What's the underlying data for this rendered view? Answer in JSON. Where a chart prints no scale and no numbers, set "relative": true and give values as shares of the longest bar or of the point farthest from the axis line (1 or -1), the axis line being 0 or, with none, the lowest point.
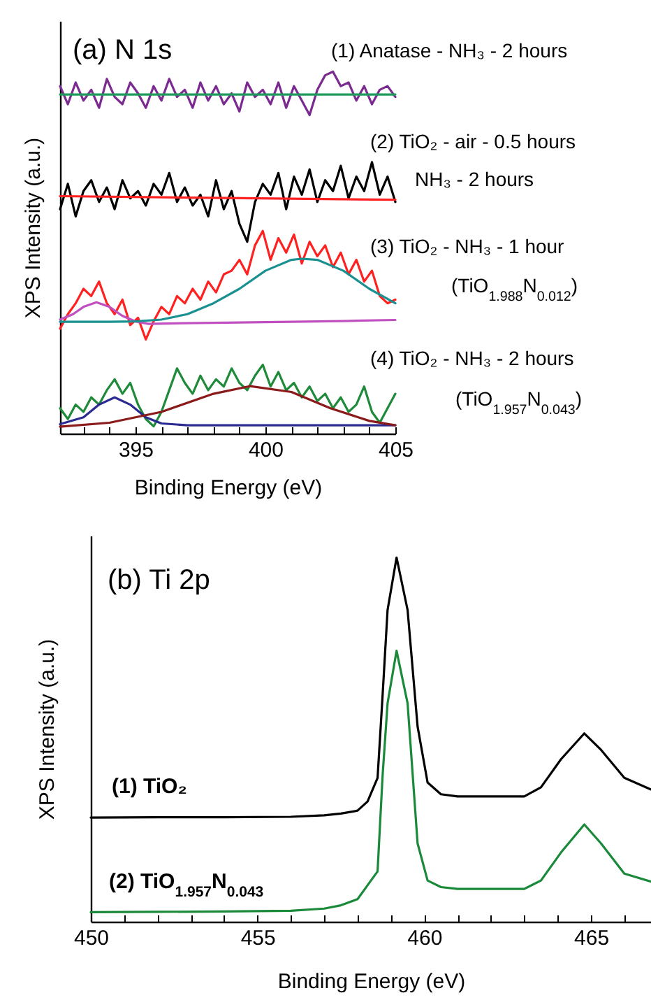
{
  "chart_data": [
    {
      "type": "line",
      "title": "(a) N 1s",
      "xlabel": "Binding Energy (eV)",
      "ylabel": "XPS Intensity (a.u.)",
      "relative": true,
      "grid": false,
      "xlim": [
        392.1,
        405
      ],
      "xticks": [
        {
          "value": 393,
          "label": null
        },
        {
          "value": 394,
          "label": null
        },
        395,
        {
          "value": 396,
          "label": null
        },
        {
          "value": 397,
          "label": null
        },
        {
          "value": 398,
          "label": null
        },
        {
          "value": 399,
          "label": null
        },
        400,
        {
          "value": 401,
          "label": null
        },
        {
          "value": 402,
          "label": null
        },
        {
          "value": 403,
          "label": null
        },
        {
          "value": 404,
          "label": null
        },
        405
      ],
      "annotations": [
        "(1) Anatase - NH₃ - 2 hours",
        "(2) TiO₂ - air - 0.5 hours",
        "NH₃ - 2 hours",
        "(3) TiO₂ - NH₃ - 1 hour",
        "(TiO$_{1.988}$N$_{0.012}$)",
        "(4) TiO₂ - NH₃ - 2 hours",
        "(TiO$_{1.957}$N$_{0.043}$)"
      ],
      "x": [
        392.1,
        392.4,
        392.7,
        393.0,
        393.3,
        393.6,
        393.9,
        394.2,
        394.5,
        394.8,
        395.1,
        395.4,
        395.7,
        396.0,
        396.3,
        396.6,
        396.9,
        397.2,
        397.5,
        397.8,
        398.1,
        398.4,
        398.7,
        399.0,
        399.3,
        399.6,
        399.9,
        400.2,
        400.5,
        400.8,
        401.1,
        401.4,
        401.7,
        402.0,
        402.3,
        402.6,
        402.9,
        403.2,
        403.5,
        403.8,
        404.1,
        404.4,
        404.7,
        405.0
      ],
      "series": [
        {
          "color": "#7b2a8f",
          "values": [
            0.96,
            0.91,
            0.97,
            0.92,
            0.95,
            0.9,
            0.98,
            0.93,
            0.91,
            0.97,
            0.94,
            0.9,
            0.96,
            0.92,
            0.98,
            0.93,
            0.95,
            0.9,
            0.97,
            0.92,
            0.96,
            0.91,
            0.94,
            0.89,
            0.97,
            0.93,
            0.95,
            0.91,
            0.97,
            0.9,
            0.96,
            0.92,
            0.88,
            0.95,
            0.99,
            1.0,
            0.96,
            0.97,
            0.92,
            0.96,
            0.91,
            0.95,
            0.96,
            0.93
          ]
        },
        {
          "color": "#1f9a5a",
          "x": [
            392.1,
            405
          ],
          "values": [
            0.937,
            0.937
          ]
        },
        {
          "color": "#000000",
          "values": [
            0.62,
            0.69,
            0.6,
            0.67,
            0.7,
            0.64,
            0.68,
            0.62,
            0.7,
            0.65,
            0.67,
            0.63,
            0.69,
            0.66,
            0.72,
            0.64,
            0.68,
            0.63,
            0.66,
            0.6,
            0.7,
            0.62,
            0.67,
            0.58,
            0.53,
            0.64,
            0.69,
            0.66,
            0.72,
            0.62,
            0.71,
            0.66,
            0.73,
            0.64,
            0.7,
            0.67,
            0.74,
            0.65,
            0.71,
            0.67,
            0.75,
            0.66,
            0.71,
            0.64
          ]
        },
        {
          "color": "#ff2020",
          "x": [
            392.1,
            405
          ],
          "values": [
            0.656,
            0.646
          ]
        },
        {
          "color": "#ff2020",
          "values": [
            0.29,
            0.33,
            0.36,
            0.4,
            0.38,
            0.42,
            0.36,
            0.33,
            0.37,
            0.3,
            0.32,
            0.26,
            0.31,
            0.35,
            0.33,
            0.38,
            0.36,
            0.4,
            0.37,
            0.42,
            0.39,
            0.44,
            0.45,
            0.48,
            0.44,
            0.52,
            0.56,
            0.48,
            0.54,
            0.5,
            0.55,
            0.47,
            0.53,
            0.49,
            0.52,
            0.46,
            0.5,
            0.44,
            0.48,
            0.42,
            0.45,
            0.38,
            0.36,
            0.37
          ]
        },
        {
          "color": "#c050c0",
          "x": [
            392.1,
            392.6,
            393.0,
            393.5,
            394.0,
            394.5,
            395.0,
            395.5,
            397,
            400,
            403,
            405
          ],
          "values": [
            0.315,
            0.33,
            0.35,
            0.363,
            0.35,
            0.325,
            0.31,
            0.303,
            0.305,
            0.308,
            0.311,
            0.314
          ]
        },
        {
          "color": "#1a9090",
          "x": [
            392.1,
            393,
            394,
            395,
            396,
            397,
            398,
            399,
            400,
            401,
            401.4,
            402,
            403,
            404,
            405
          ],
          "values": [
            0.309,
            0.309,
            0.309,
            0.31,
            0.315,
            0.33,
            0.36,
            0.4,
            0.45,
            0.48,
            0.483,
            0.48,
            0.45,
            0.4,
            0.36
          ]
        },
        {
          "color": "#1e8a3a",
          "values": [
            0.07,
            0.04,
            0.08,
            0.06,
            0.1,
            0.08,
            0.12,
            0.15,
            0.11,
            0.14,
            0.08,
            0.04,
            0.02,
            0.06,
            0.12,
            0.18,
            0.14,
            0.11,
            0.16,
            0.12,
            0.15,
            0.13,
            0.18,
            0.14,
            0.12,
            0.16,
            0.19,
            0.13,
            0.17,
            0.12,
            0.14,
            0.1,
            0.13,
            0.09,
            0.11,
            0.07,
            0.1,
            0.06,
            0.08,
            0.13,
            0.06,
            0.03,
            0.07,
            0.11
          ]
        },
        {
          "color": "#2a2a90",
          "x": [
            392.1,
            393.0,
            393.6,
            394.2,
            394.8,
            395.4,
            396.0,
            397,
            400,
            405
          ],
          "values": [
            0.026,
            0.045,
            0.08,
            0.1,
            0.08,
            0.045,
            0.028,
            0.023,
            0.023,
            0.023
          ]
        },
        {
          "color": "#8b1a1a",
          "x": [
            392.1,
            394,
            396,
            398,
            399.4,
            401,
            402.5,
            404,
            405
          ],
          "values": [
            0.019,
            0.03,
            0.06,
            0.11,
            0.131,
            0.115,
            0.07,
            0.035,
            0.023
          ]
        }
      ]
    },
    {
      "type": "line",
      "title": "(b) Ti 2p",
      "xlabel": "Binding Energy (eV)",
      "ylabel": "XPS Intensity (a.u.)",
      "relative": true,
      "grid": false,
      "xlim": [
        450,
        466.8
      ],
      "xticks": [
        450,
        {
          "value": 451,
          "label": null
        },
        {
          "value": 452,
          "label": null
        },
        {
          "value": 453,
          "label": null
        },
        {
          "value": 454,
          "label": null
        },
        455,
        {
          "value": 456,
          "label": null
        },
        {
          "value": 457,
          "label": null
        },
        {
          "value": 458,
          "label": null
        },
        {
          "value": 459,
          "label": null
        },
        460,
        {
          "value": 461,
          "label": null
        },
        {
          "value": 462,
          "label": null
        },
        {
          "value": 463,
          "label": null
        },
        {
          "value": 464,
          "label": null
        },
        465,
        {
          "value": 466,
          "label": null
        }
      ],
      "annotations": [
        "(1) TiO₂",
        "(2) TiO$_{1.957}$N$_{0.043}$"
      ],
      "x": [
        450,
        452,
        454,
        456,
        457,
        457.5,
        458,
        458.3,
        458.6,
        458.75,
        458.9,
        459.17,
        459.5,
        459.8,
        460.1,
        460.5,
        461,
        462,
        463,
        463.5,
        464.1,
        464.8,
        465.3,
        466,
        466.8
      ],
      "series": [
        {
          "color": "#000000",
          "values": [
            0.286,
            0.287,
            0.287,
            0.288,
            0.292,
            0.297,
            0.305,
            0.33,
            0.395,
            0.62,
            0.856,
            1,
            0.856,
            0.536,
            0.382,
            0.35,
            0.344,
            0.344,
            0.344,
            0.369,
            0.446,
            0.517,
            0.472,
            0.395,
            0.363
          ]
        },
        {
          "color": "#1a8a3a",
          "values": [
            0.026,
            0.027,
            0.028,
            0.03,
            0.036,
            0.045,
            0.062,
            0.1,
            0.138,
            0.4,
            0.6,
            0.744,
            0.6,
            0.215,
            0.113,
            0.095,
            0.09,
            0.09,
            0.09,
            0.113,
            0.19,
            0.267,
            0.215,
            0.132,
            0.11
          ]
        }
      ]
    }
  ]
}
